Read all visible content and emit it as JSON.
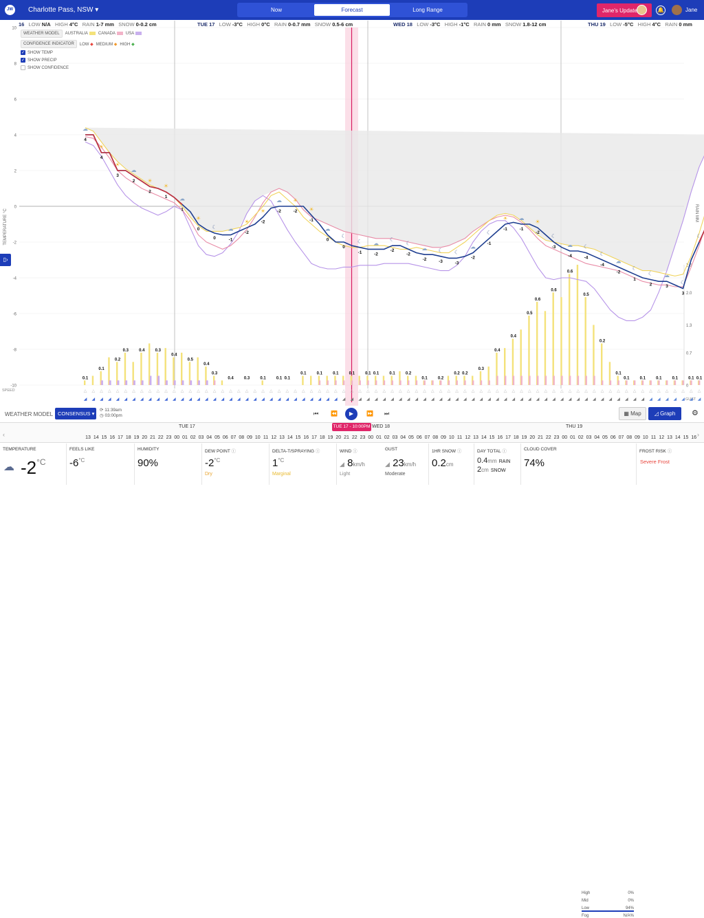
{
  "app": {
    "logo": "JW",
    "location": "Charlotte Pass, NSW",
    "tabs": [
      "Now",
      "Forecast",
      "Long Range"
    ],
    "active_tab": "Forecast",
    "update_button": "Jane's Update",
    "user_name": "Jane"
  },
  "day_headers": [
    {
      "day": "16",
      "low": "N/A",
      "high": "4°C",
      "rain": "1-7 mm",
      "snow": "0-0.2 cm"
    },
    {
      "day": "TUE 17",
      "low": "-3°C",
      "high": "0°C",
      "rain": "0-0.7 mm",
      "snow": "0.5-6 cm"
    },
    {
      "day": "WED 18",
      "low": "-3°C",
      "high": "-1°C",
      "rain": "0 mm",
      "snow": "1.8-12 cm"
    },
    {
      "day": "THU 19",
      "low": "-5°C",
      "high": "4°C",
      "rain": "0 mm",
      "snow": ""
    }
  ],
  "header_labels": {
    "low": "LOW",
    "high": "HIGH",
    "rain": "RAIN",
    "snow": "SNOW"
  },
  "legend": {
    "weather_model": "WEATHER MODEL",
    "models": [
      {
        "name": "AUSTRALIA",
        "color": "#f4e27a"
      },
      {
        "name": "CANADA",
        "color": "#f2b3c8"
      },
      {
        "name": "USA",
        "color": "#c9b0ee"
      }
    ],
    "confidence_indicator": "CONFIDENCE INDICATOR",
    "confidence": [
      {
        "name": "LOW",
        "color": "#e8453c"
      },
      {
        "name": "MEDIUM",
        "color": "#f29a2e"
      },
      {
        "name": "HIGH",
        "color": "#4cb050"
      }
    ],
    "checks": [
      {
        "label": "SHOW TEMP",
        "checked": true
      },
      {
        "label": "SHOW PRECIP",
        "checked": true
      },
      {
        "label": "SHOW CONFIDENCE",
        "checked": false
      }
    ]
  },
  "axes": {
    "left_label": "TEMPERATURE °C",
    "right_label": "RAIN MM",
    "left_ticks": [
      10,
      8,
      6,
      4,
      2,
      0,
      -2,
      -4,
      -6,
      -8,
      -10
    ],
    "right_ticks": [
      "2.6",
      "2.0",
      "1.3",
      "0.7",
      "0"
    ],
    "speed_label": "SPEED",
    "gust_label": "GUST"
  },
  "chart_data": {
    "type": "line",
    "x_start_hour": "Mon 16 12:00",
    "x_step_hours": 1,
    "ylim": [
      -10,
      10
    ],
    "series": [
      {
        "name": "CONSENSUS",
        "color": "#1d3d8f",
        "values": [
          4,
          4,
          3,
          3,
          2,
          2,
          1.7,
          1.4,
          1.1,
          1,
          0.8,
          0.5,
          0.1,
          -0.3,
          -1,
          -1.3,
          -1.5,
          -1.6,
          -1.6,
          -1.4,
          -1.2,
          -1,
          -0.6,
          -0.1,
          0,
          0,
          0,
          0,
          -0.5,
          -1,
          -1.6,
          -2,
          -2,
          -2.2,
          -2.3,
          -2.4,
          -2.4,
          -2.4,
          -2.2,
          -2.2,
          -2.4,
          -2.6,
          -2.7,
          -2.7,
          -2.8,
          -2.9,
          -2.9,
          -2.8,
          -2.6,
          -2.2,
          -1.8,
          -1.4,
          -1,
          -0.9,
          -1,
          -1,
          -1.2,
          -1.6,
          -2,
          -2.3,
          -2.5,
          -2.5,
          -2.6,
          -2.8,
          -3,
          -3.2,
          -3.4,
          -3.6,
          -3.8,
          -4,
          -4.1,
          -4.2,
          -4.2,
          -4.4,
          -4.6,
          -3,
          -2,
          -1,
          0,
          1,
          2,
          3,
          3.4,
          3.4
        ]
      },
      {
        "name": "AUSTRALIA",
        "color": "#f0d35a",
        "values": [
          4.4,
          4.2,
          3.6,
          3,
          2.5,
          2.1,
          1.8,
          1.5,
          1.2,
          1,
          0.8,
          0.5,
          0,
          -0.6,
          -1.1,
          -1.4,
          -1.4,
          -1.4,
          -1.3,
          -1.2,
          -1,
          -0.5,
          0,
          0.6,
          0.8,
          0.4,
          0,
          -0.6,
          -1,
          -1.4,
          -1.7,
          -2,
          -2.2,
          -2.3,
          -2.3,
          -2.2,
          -2.2,
          -2.2,
          -2.3,
          -2.4,
          -2.4,
          -2.3,
          -2.4,
          -2.5,
          -2.6,
          -2.6,
          -2.3,
          -2,
          -1.6,
          -1.2,
          -0.8,
          -0.5,
          -0.4,
          -0.5,
          -0.8,
          -1.2,
          -1.6,
          -1.9,
          -2,
          -2.1,
          -2.2,
          -2.2,
          -2.3,
          -2.4,
          -2.6,
          -2.8,
          -3,
          -3.2,
          -3.4,
          -3.6,
          -3.6,
          -3.7,
          -3.8,
          -3.9,
          -3.8,
          -2.8,
          -1.5,
          0,
          1.2,
          2.4,
          3.2,
          3.6,
          3.6,
          3.5
        ]
      },
      {
        "name": "CANADA",
        "color": "#e88ba6",
        "values": [
          3.9,
          3.8,
          3.3,
          2.7,
          2,
          1.6,
          1.3,
          1,
          0.8,
          0.6,
          0.4,
          0.2,
          -0.2,
          -0.8,
          -1.6,
          -2,
          -2.2,
          -2.4,
          -2.2,
          -1.8,
          -1.3,
          -0.6,
          0.2,
          0.8,
          1,
          0.8,
          0.4,
          -0.2,
          -0.6,
          -0.8,
          -1,
          -1.2,
          -1.4,
          -1.5,
          -1.6,
          -1.7,
          -1.8,
          -1.8,
          -1.8,
          -1.9,
          -2,
          -2.1,
          -2.2,
          -2.3,
          -2.3,
          -2.2,
          -2,
          -1.8,
          -1.4,
          -1.1,
          -0.8,
          -0.6,
          -0.5,
          -0.6,
          -0.9,
          -1.3,
          -1.8,
          -2.2,
          -2.4,
          -2.6,
          -2.8,
          -3,
          -3.2,
          -3.3,
          -3.4,
          -3.5,
          -3.6,
          -3.8,
          -4,
          -4.2,
          -4.3,
          -4.4,
          -4.4,
          -4.5,
          -4.5,
          -3.4,
          -2.2,
          -0.8,
          0.8,
          2.2,
          3.2,
          3.6,
          3.6,
          3.4
        ]
      },
      {
        "name": "USA",
        "color": "#b693e8",
        "values": [
          3.6,
          3.4,
          2.8,
          2,
          1.2,
          0.6,
          0.2,
          -0.1,
          -0.3,
          -0.5,
          -0.3,
          0,
          -0.2,
          -1.2,
          -2.2,
          -2.7,
          -2.8,
          -2.6,
          -2.1,
          -1.4,
          -0.4,
          0.3,
          0.6,
          0.3,
          -0.5,
          -1.3,
          -2,
          -2.6,
          -3.2,
          -3.4,
          -3.5,
          -3.5,
          -3.4,
          -3.4,
          -3.3,
          -3.3,
          -3.3,
          -3.2,
          -3.2,
          -3.2,
          -3.2,
          -3.3,
          -3.4,
          -3.5,
          -3.6,
          -3.6,
          -3.3,
          -2.8,
          -2,
          -1.4,
          -1,
          -0.8,
          -0.8,
          -1.2,
          -1.8,
          -2.6,
          -3.4,
          -4,
          -4.1,
          -4,
          -4,
          -4.1,
          -4.2,
          -4.6,
          -5.2,
          -5.8,
          -6.2,
          -6.4,
          -6.4,
          -6.2,
          -5.8,
          -4.8,
          -3.6,
          -2.2,
          -0.8,
          0.8,
          2.2,
          3.2,
          4,
          4.1,
          4
        ]
      }
    ],
    "temp_labels": [
      "4",
      "4",
      "3",
      "2",
      "2",
      "1",
      "1",
      "0",
      "0",
      "-1",
      "-2",
      "-2",
      "-2",
      "-2",
      "-1",
      "0",
      "0",
      "-1",
      "-2",
      "-2",
      "-2",
      "-2",
      "-3",
      "-3",
      "-2",
      "-1",
      "-1",
      "-1",
      "-2",
      "-3",
      "-4",
      "-4",
      "-4",
      "-2",
      "1",
      "2",
      "3",
      "3"
    ],
    "precip_labels": [
      "0.1",
      "0.1",
      "0.2",
      "0.3",
      "0.4",
      "0.3",
      "0.4",
      "0.5",
      "0.4",
      "0.3",
      "0.4",
      "0.3",
      "0.1",
      "0.1",
      "0.1",
      "0.1",
      "0.1",
      "0.1",
      "0.1",
      "0.1",
      "0.1",
      "0.1",
      "0.2",
      "0.1",
      "0.2",
      "0.2",
      "0.2",
      "0.3",
      "0.4",
      "0.4",
      "0.5",
      "0.6",
      "0.6",
      "0.6",
      "0.5",
      "0.2",
      "0.1",
      "0.1",
      "0.1",
      "0.1",
      "0.1",
      "0.1",
      "0.1",
      "0.1",
      "0.1"
    ],
    "precip_au": [
      0.1,
      0.2,
      0.3,
      0.6,
      0.5,
      0.7,
      0.5,
      0.7,
      0.9,
      0.7,
      0.8,
      0.6,
      0.7,
      0.5,
      0.6,
      0.4,
      0.2,
      0.1,
      0,
      0,
      0,
      0,
      0.1,
      0,
      0,
      0,
      0,
      0.2,
      0.2,
      0.2,
      0.2,
      0.2,
      0.2,
      0.2,
      0.2,
      0.2,
      0.2,
      0.2,
      0.2,
      0.3,
      0.2,
      0.2,
      0.1,
      0.1,
      0.1,
      0.2,
      0.2,
      0.2,
      0.2,
      0.3,
      0.4,
      0.7,
      0.8,
      1.0,
      1.2,
      1.5,
      1.8,
      1.6,
      2.0,
      1.9,
      2.4,
      2.6,
      1.9,
      1.3,
      0.9,
      0.5,
      0.2,
      0.1,
      0.1,
      0.1,
      0.1,
      0.1,
      0.1,
      0.1,
      0.1,
      0.1,
      0.1,
      0,
      0,
      0,
      0,
      0,
      0,
      0
    ],
    "precip_ca": [
      0,
      0,
      0.1,
      0.1,
      0.1,
      0.1,
      0.1,
      0.1,
      0.1,
      0.2,
      0.1,
      0.1,
      0.1,
      0.1,
      0.1,
      0.1,
      0.1,
      0,
      0,
      0,
      0,
      0,
      0,
      0,
      0,
      0,
      0,
      0,
      0,
      0.1,
      0.1,
      0.1,
      0.1,
      0.1,
      0.1,
      0.1,
      0.1,
      0.1,
      0.1,
      0.1,
      0.1,
      0.1,
      0.1,
      0.1,
      0.1,
      0.1,
      0.1,
      0.1,
      0.1,
      0.1,
      0.1,
      0.2,
      0.2,
      0.2,
      0.2,
      0.2,
      0.2,
      0.2,
      0.2,
      0.2,
      0.2,
      0.2,
      0.2,
      0.2,
      0.1,
      0.1,
      0.1,
      0.1,
      0.1,
      0.1,
      0.1,
      0.1,
      0.1,
      0.1,
      0.1,
      0.1,
      0.1,
      0,
      0,
      0,
      0,
      0,
      0,
      0
    ],
    "precip_us": [
      0,
      0,
      0.1,
      0.1,
      0.1,
      0.1,
      0.1,
      0.1,
      0.2,
      0.2,
      0.1,
      0.1,
      0.1,
      0.1,
      0.1,
      0.1,
      0,
      0,
      0,
      0,
      0,
      0,
      0,
      0,
      0,
      0,
      0,
      0,
      0,
      0,
      0,
      0,
      0,
      0,
      0,
      0,
      0,
      0,
      0,
      0,
      0,
      0,
      0,
      0,
      0,
      0,
      0,
      0,
      0,
      0,
      0,
      0,
      0,
      0,
      0,
      0,
      0,
      0,
      0,
      0,
      0,
      0,
      0,
      0,
      0,
      0,
      0,
      0,
      0,
      0,
      0,
      0,
      0,
      0,
      0,
      0,
      0,
      0,
      0,
      0,
      0,
      0,
      0,
      0
    ],
    "rain_ylim": [
      0,
      2.6
    ]
  },
  "controls": {
    "weather_model_label": "WEATHER MODEL",
    "weather_model_value": "CONSENSUS",
    "updated_1": "11:39am",
    "updated_2": "03:00pm",
    "map_label": "Map",
    "graph_label": "Graph"
  },
  "timeline": {
    "days": [
      "TUE 17",
      "WED 18",
      "THU 19"
    ],
    "hours": [
      "13",
      "14",
      "15",
      "16",
      "17",
      "18",
      "19",
      "20",
      "21",
      "22",
      "23",
      "00",
      "01",
      "02",
      "03",
      "04",
      "05",
      "06",
      "07",
      "08",
      "09",
      "10",
      "11",
      "12",
      "13",
      "14",
      "15",
      "16",
      "17",
      "18",
      "19",
      "20",
      "21",
      "22",
      "23",
      "00",
      "01",
      "02",
      "03",
      "04",
      "05",
      "06",
      "07",
      "08",
      "09",
      "10",
      "11",
      "12",
      "13",
      "14",
      "15",
      "16",
      "17",
      "18",
      "19",
      "20",
      "21",
      "22",
      "23",
      "00",
      "01",
      "02",
      "03",
      "04",
      "05",
      "06",
      "07",
      "08",
      "09",
      "10",
      "11",
      "12",
      "13",
      "14",
      "15",
      "16"
    ],
    "selected": "TUE 17 - 10:00PM"
  },
  "stats": {
    "temperature": {
      "label": "TEMPERATURE",
      "value": "-2",
      "unit": "°C"
    },
    "feels_like": {
      "label": "FEELS LIKE",
      "value": "-6",
      "unit": "°C"
    },
    "humidity": {
      "label": "HUMIDITY",
      "value": "90%"
    },
    "dew_point": {
      "label": "DEW POINT",
      "value": "-2",
      "unit": "°C",
      "sub": "Dry"
    },
    "delta_t": {
      "label": "DELTA-T/SPRAYING",
      "value": "1",
      "unit": "°C",
      "sub": "Marginal"
    },
    "wind": {
      "label": "WIND",
      "value": "8",
      "unit": "km/h",
      "sub": "Light"
    },
    "gust": {
      "label": "GUST",
      "value": "23",
      "unit": "km/h",
      "sub": "Moderate"
    },
    "snow_1hr": {
      "label": "1HR SNOW",
      "value": "0.2",
      "unit": "cm"
    },
    "day_total": {
      "label": "DAY TOTAL",
      "rain": "0.4",
      "rain_unit": "mm",
      "rain_lbl": "RAIN",
      "snow": "2",
      "snow_unit": "cm",
      "snow_lbl": "SNOW"
    },
    "cloud_cover": {
      "label": "CLOUD COVER",
      "value": "74%"
    },
    "cloud_levels": [
      {
        "name": "High",
        "value": "0%"
      },
      {
        "name": "Mid",
        "value": "0%"
      },
      {
        "name": "Low",
        "value": "94%"
      },
      {
        "name": "Fog",
        "value": "N/A%"
      }
    ],
    "frost_risk": {
      "label": "FROST RISK",
      "value": "Severe Frost"
    }
  }
}
